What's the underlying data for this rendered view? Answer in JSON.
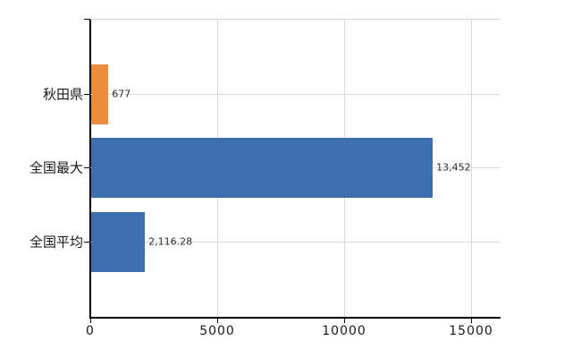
{
  "chart_data": {
    "type": "bar",
    "orientation": "horizontal",
    "categories": [
      "秋田県",
      "全国最大",
      "全国平均"
    ],
    "values": [
      677,
      13452,
      2116.28
    ],
    "value_labels": [
      "677",
      "13,452",
      "2,116.28"
    ],
    "bar_colors": [
      "#ea8c3c",
      "#3c6eb0",
      "#3c6eb0"
    ],
    "xlim": [
      0,
      16160
    ],
    "x_ticks": [
      0,
      5000,
      10000,
      15000
    ],
    "x_tick_labels": [
      "0",
      "5000",
      "10000",
      "15000"
    ],
    "grid": "on",
    "legend": "none",
    "title": ""
  },
  "colors": {
    "bar_orange": "#ea8c3c",
    "bar_blue": "#3c6eb0",
    "gridline": "#d9d9d9",
    "plot_border": "#d5d5d5",
    "axis": "#000000",
    "text": "#1a1a1a",
    "background": "#ffffff"
  }
}
